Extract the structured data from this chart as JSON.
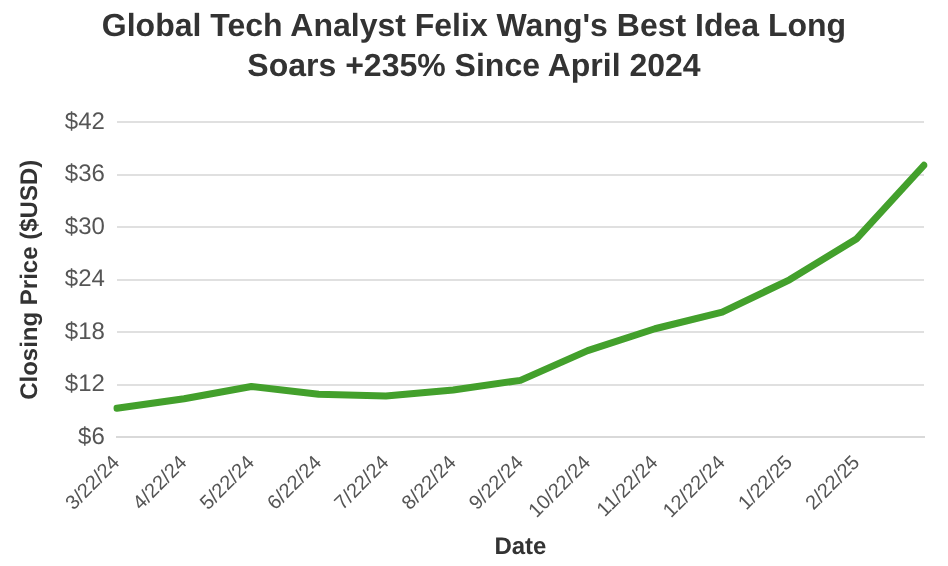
{
  "chart_data": {
    "type": "line",
    "title": "Global Tech Analyst Felix Wang's Best Idea Long",
    "subtitle": "Soars +235% Since April 2024",
    "xlabel": "Date",
    "ylabel": "Closing Price ($USD)",
    "categories": [
      "3/22/24",
      "4/22/24",
      "5/22/24",
      "6/22/24",
      "7/22/24",
      "8/22/24",
      "9/22/24",
      "10/22/24",
      "11/22/24",
      "12/22/24",
      "1/22/25",
      "2/22/25",
      null
    ],
    "series": [
      {
        "color": "#43a02c",
        "values": [
          9.3,
          10.4,
          11.8,
          10.9,
          10.7,
          11.4,
          12.5,
          15.9,
          18.4,
          20.3,
          24.0,
          28.7,
          37.1
        ]
      }
    ],
    "ylim": [
      6,
      42
    ],
    "yticks": [
      {
        "value": 6,
        "label": "$6"
      },
      {
        "value": 12,
        "label": "$12"
      },
      {
        "value": 18,
        "label": "$18"
      },
      {
        "value": 24,
        "label": "$24"
      },
      {
        "value": 30,
        "label": "$30"
      },
      {
        "value": 36,
        "label": "$36"
      },
      {
        "value": 42,
        "label": "$42"
      }
    ],
    "grid": "y",
    "legend": false,
    "marker": "none",
    "line_style": "solid"
  }
}
